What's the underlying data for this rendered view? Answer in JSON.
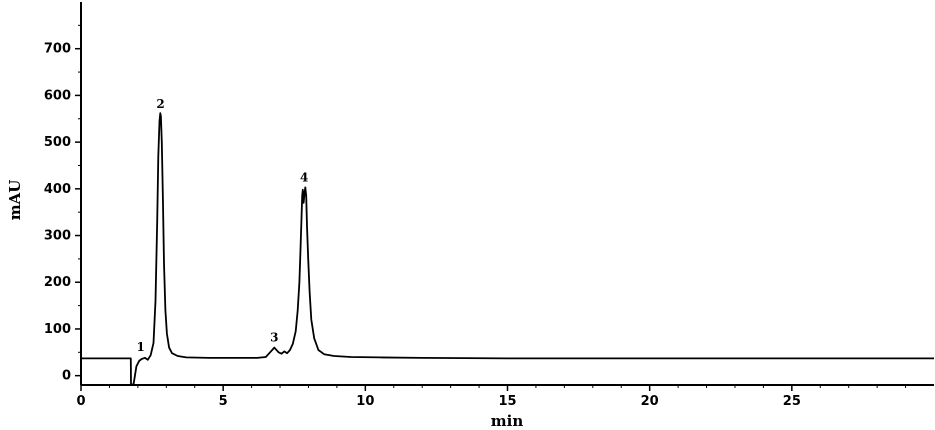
{
  "chart_data": {
    "type": "line",
    "xlabel": "min",
    "ylabel": "mAU",
    "xlim": [
      0,
      30
    ],
    "ylim": [
      -20,
      800
    ],
    "xticks": [
      0,
      5,
      10,
      15,
      20,
      25
    ],
    "xtick_labels": [
      "0",
      "5",
      "10",
      "15",
      "20",
      "25"
    ],
    "yticks": [
      0,
      100,
      200,
      300,
      400,
      500,
      600,
      700
    ],
    "ytick_labels": [
      "0",
      "100",
      "200",
      "300",
      "400",
      "500",
      "600",
      "700"
    ],
    "grid": false,
    "peaks": [
      {
        "label": "1",
        "x": 2.1,
        "y": 40
      },
      {
        "label": "2",
        "x": 2.8,
        "y": 560
      },
      {
        "label": "3",
        "x": 6.8,
        "y": 60
      },
      {
        "label": "4",
        "x": 7.85,
        "y": 403
      }
    ],
    "series": [
      {
        "color": "#000000",
        "points": [
          [
            0,
            37
          ],
          [
            1.75,
            37
          ],
          [
            1.76,
            -20
          ],
          [
            1.85,
            -18
          ],
          [
            1.95,
            20
          ],
          [
            2.05,
            32
          ],
          [
            2.15,
            36
          ],
          [
            2.25,
            38
          ],
          [
            2.35,
            34
          ],
          [
            2.45,
            44
          ],
          [
            2.55,
            70
          ],
          [
            2.62,
            160
          ],
          [
            2.68,
            330
          ],
          [
            2.72,
            470
          ],
          [
            2.76,
            545
          ],
          [
            2.79,
            562
          ],
          [
            2.81,
            555
          ],
          [
            2.84,
            500
          ],
          [
            2.88,
            380
          ],
          [
            2.92,
            240
          ],
          [
            2.97,
            140
          ],
          [
            3.02,
            90
          ],
          [
            3.1,
            60
          ],
          [
            3.2,
            48
          ],
          [
            3.4,
            42
          ],
          [
            3.7,
            39
          ],
          [
            4.5,
            38
          ],
          [
            5.5,
            38
          ],
          [
            6.2,
            38
          ],
          [
            6.5,
            40
          ],
          [
            6.65,
            50
          ],
          [
            6.8,
            60
          ],
          [
            6.95,
            50
          ],
          [
            7.05,
            47
          ],
          [
            7.15,
            52
          ],
          [
            7.25,
            48
          ],
          [
            7.35,
            55
          ],
          [
            7.45,
            68
          ],
          [
            7.55,
            95
          ],
          [
            7.62,
            140
          ],
          [
            7.68,
            200
          ],
          [
            7.72,
            270
          ],
          [
            7.75,
            330
          ],
          [
            7.78,
            385
          ],
          [
            7.8,
            398
          ],
          [
            7.83,
            370
          ],
          [
            7.86,
            390
          ],
          [
            7.89,
            403
          ],
          [
            7.92,
            385
          ],
          [
            7.95,
            320
          ],
          [
            7.99,
            250
          ],
          [
            8.04,
            180
          ],
          [
            8.1,
            120
          ],
          [
            8.2,
            80
          ],
          [
            8.35,
            55
          ],
          [
            8.55,
            46
          ],
          [
            8.9,
            42
          ],
          [
            9.5,
            40
          ],
          [
            10.5,
            39
          ],
          [
            12,
            38
          ],
          [
            15,
            37
          ],
          [
            20,
            37
          ],
          [
            25,
            37
          ],
          [
            30,
            37
          ]
        ]
      }
    ]
  }
}
